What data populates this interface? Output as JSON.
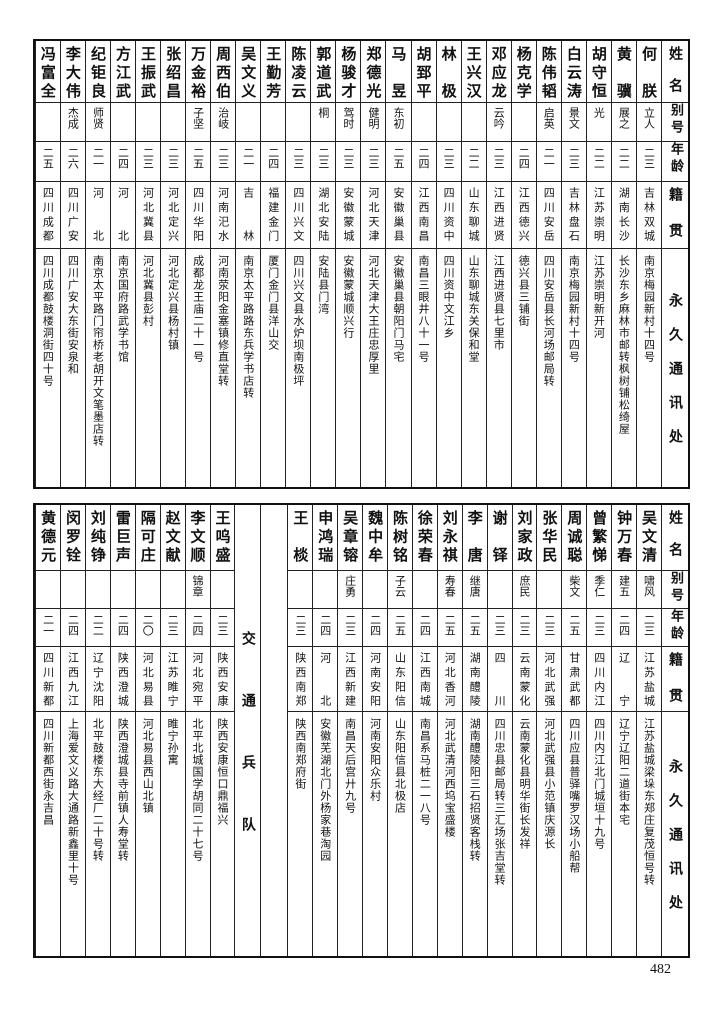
{
  "headers": {
    "name": "姓名",
    "alias": "别号",
    "age": "年龄",
    "native": "籍贯",
    "address": "永久通讯处"
  },
  "top_rows": [
    {
      "name": "何朕",
      "alias": "立人",
      "age": "二三",
      "native": "吉林双城",
      "address": "南京梅园新村十四号"
    },
    {
      "name": "黄骥",
      "alias": "展之",
      "age": "二二",
      "native": "湖南长沙",
      "address": "长沙东乡麻林市邮转枫树铺松绮屋"
    },
    {
      "name": "胡守恒",
      "alias": "光",
      "age": "二二",
      "native": "江苏崇明",
      "address": "江苏崇明新开河"
    },
    {
      "name": "白云涛",
      "alias": "景文",
      "age": "二三",
      "native": "吉林盘石",
      "address": "南京梅园新村十四号"
    },
    {
      "name": "陈伟韬",
      "alias": "启英",
      "age": "二一",
      "native": "四川安岳",
      "address": "四川安岳县长河场邮局转"
    },
    {
      "name": "杨克学",
      "alias": "",
      "age": "二四",
      "native": "江西德兴",
      "address": "德兴县三铺街"
    },
    {
      "name": "邓应龙",
      "alias": "云吟",
      "age": "二三",
      "native": "江西进贤",
      "address": "江西进贤县七里市"
    },
    {
      "name": "王兴汉",
      "alias": "",
      "age": "二二",
      "native": "山东聊城",
      "address": "山东聊城东关保和堂"
    },
    {
      "name": "林极",
      "alias": "",
      "age": "二三",
      "native": "四川资中",
      "address": "四川资中文江乡"
    },
    {
      "name": "胡郅平",
      "alias": "",
      "age": "二四",
      "native": "江西南昌",
      "address": "南昌三眼井八十一号"
    },
    {
      "name": "马昱",
      "alias": "东初",
      "age": "二五",
      "native": "安徽巢县",
      "address": "安徽巢县朝阳门马宅"
    },
    {
      "name": "郑德光",
      "alias": "健明",
      "age": "二三",
      "native": "河北天津",
      "address": "河北天津大王庄忠厚里"
    },
    {
      "name": "杨骏才",
      "alias": "驾时",
      "age": "二三",
      "native": "安徽蒙城",
      "address": "安徽蒙城顺兴行"
    },
    {
      "name": "郭道武",
      "alias": "桐",
      "age": "二三",
      "native": "湖北安陆",
      "address": "安陆县门湾"
    },
    {
      "name": "陈凌云",
      "alias": "",
      "age": "二三",
      "native": "四川兴文",
      "address": "四川兴文县水炉坝南极坪"
    },
    {
      "name": "王勤芳",
      "alias": "",
      "age": "二四",
      "native": "福建金门",
      "address": "厦门金门县洋山交"
    },
    {
      "name": "吴文义",
      "alias": "",
      "age": "二一",
      "native": "吉林",
      "address": "南京太平路路东兵学书店转"
    },
    {
      "name": "周西伯",
      "alias": "治岐",
      "age": "二三",
      "native": "河南汜水",
      "address": "河南荥阳金塞镇修直堂转"
    },
    {
      "name": "万金裕",
      "alias": "子坚",
      "age": "二五",
      "native": "四川华阳",
      "address": "成都龙王庙二十一号"
    },
    {
      "name": "张绍昌",
      "alias": "",
      "age": "二三",
      "native": "河北定兴",
      "address": "河北定兴县杨村镇"
    },
    {
      "name": "王振武",
      "alias": "",
      "age": "二三",
      "native": "河北冀县",
      "address": "河北冀县彭村"
    },
    {
      "name": "方江武",
      "alias": "",
      "age": "二四",
      "native": "河北",
      "address": "南京国府路武学书馆"
    },
    {
      "name": "纪钜良",
      "alias": "师贤",
      "age": "二一",
      "native": "河北",
      "address": "南京太平路门帘桥老胡开文笔墨店转"
    },
    {
      "name": "李大伟",
      "alias": "杰成",
      "age": "二六",
      "native": "四川广安",
      "address": "四川广安大东街安泉和"
    },
    {
      "name": "冯富全",
      "alias": "",
      "age": "二五",
      "native": "四川成都",
      "address": "四川成都鼓楼洞街四十号"
    }
  ],
  "bottom_rows": [
    {
      "name": "吴文清",
      "alias": "啸风",
      "age": "二三",
      "native": "江苏盐城",
      "address": "江苏盐城梁垛东郑庄复茂恒号转"
    },
    {
      "name": "钟万春",
      "alias": "建五",
      "age": "二四",
      "native": "辽宁",
      "address": "辽宁辽阳二道街本宅"
    },
    {
      "name": "曾繁悌",
      "alias": "季仁",
      "age": "二三",
      "native": "四川内江",
      "address": "四川内江北门城垣十九号"
    },
    {
      "name": "周诚聪",
      "alias": "柴文",
      "age": "二五",
      "native": "甘肃武都",
      "address": "四川应县普驿嘴罗汉场小船帮"
    },
    {
      "name": "张华民",
      "alias": "",
      "age": "二三",
      "native": "河北武强",
      "address": "河北武强县小范镇庆源长"
    },
    {
      "name": "刘家政",
      "alias": "庶民",
      "age": "二三",
      "native": "云南蒙化",
      "address": "云南蒙化县明华街长发祥"
    },
    {
      "name": "谢铎",
      "alias": "",
      "age": "二三",
      "native": "四川",
      "address": "四川忠县邮局转三汇场张吉堂转"
    },
    {
      "name": "李唐",
      "alias": "继唐",
      "age": "二五",
      "native": "湖南醴陵",
      "address": "湖南醴陵阳三石招贤客栈转"
    },
    {
      "name": "刘永祺",
      "alias": "寿春",
      "age": "二五",
      "native": "河北香河",
      "address": "河北武清河西坞宝盛楼"
    },
    {
      "name": "徐荣春",
      "alias": "",
      "age": "二四",
      "native": "江西南城",
      "address": "南昌系马桩二一八号"
    },
    {
      "name": "陈树铭",
      "alias": "子云",
      "age": "二五",
      "native": "山东阳信",
      "address": "山东阳信县北极店"
    },
    {
      "name": "魏中牟",
      "alias": "",
      "age": "二四",
      "native": "河南安阳",
      "address": "河南安阳众乐村"
    },
    {
      "name": "吴章镕",
      "alias": "庄勇",
      "age": "二三",
      "native": "江西新建",
      "address": "南昌天后宫廾九号"
    },
    {
      "name": "申鸿瑞",
      "alias": "",
      "age": "二四",
      "native": "河北",
      "address": "安徽芜湖北门外杨家巷淘园"
    },
    {
      "name": "王棪",
      "alias": "",
      "age": "二三",
      "native": "陕西南郑",
      "address": "陕西南郑府街"
    }
  ],
  "section_label": "交通兵队",
  "section_rows": [
    {
      "name": "王呜盛",
      "alias": "",
      "age": "二三",
      "native": "陕西安康",
      "address": "陕西安康恒口鼎福兴"
    },
    {
      "name": "李文顺",
      "alias": "锦章",
      "age": "二四",
      "native": "河北宛平",
      "address": "北平北城国学胡同二十七号"
    },
    {
      "name": "赵文献",
      "alias": "",
      "age": "二三",
      "native": "江苏睢宁",
      "address": "睢宁孙寓"
    },
    {
      "name": "隔可庄",
      "alias": "",
      "age": "二〇",
      "native": "河北易县",
      "address": "河北易县西山北镇"
    },
    {
      "name": "雷巨声",
      "alias": "",
      "age": "二四",
      "native": "陕西澄城",
      "address": "陕西澄城县寺前镇人寿堂转"
    },
    {
      "name": "刘纯铮",
      "alias": "",
      "age": "二二",
      "native": "辽宁沈阳",
      "address": "北平鼓楼东大经厂二十号转"
    },
    {
      "name": "闵罗铨",
      "alias": "",
      "age": "二四",
      "native": "江西九江",
      "address": "上海爱文义路大通路新鑫里十号"
    },
    {
      "name": "黄德元",
      "alias": "",
      "age": "二一",
      "native": "四川新都",
      "address": "四川新都西街永吉昌"
    }
  ],
  "page_number": "482"
}
